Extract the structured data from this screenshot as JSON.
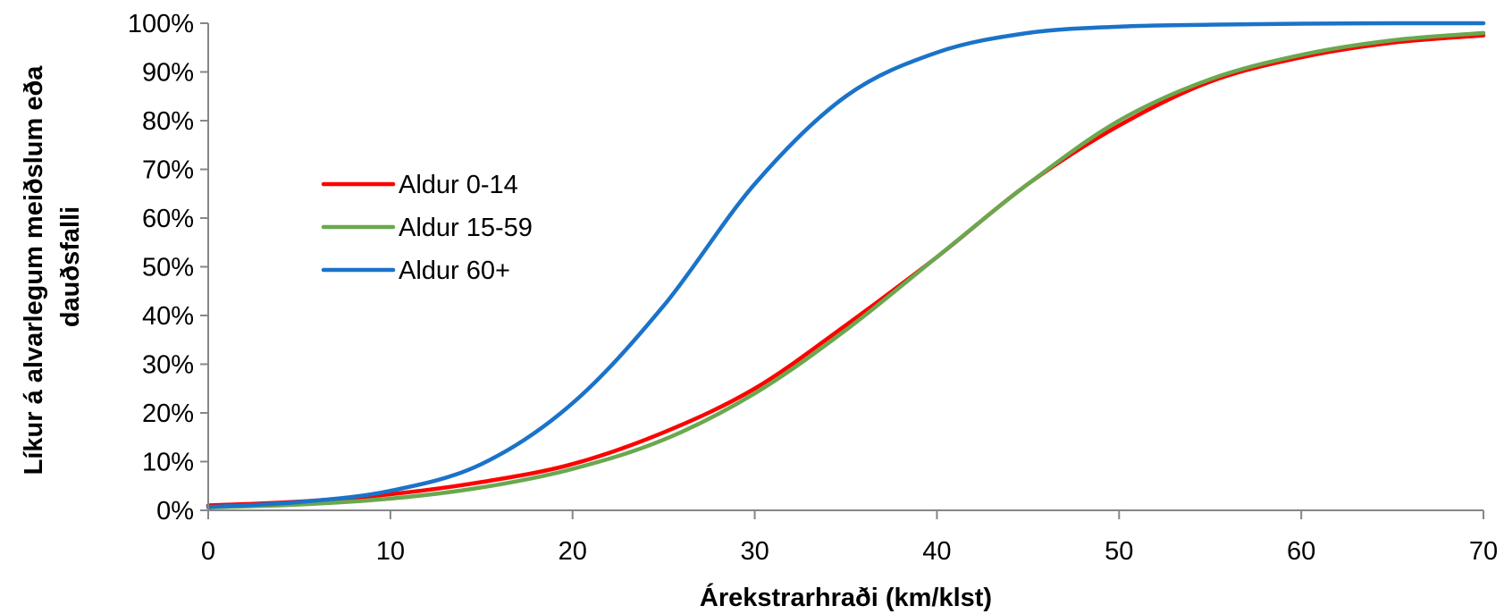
{
  "chart_data": {
    "type": "line",
    "title": "",
    "xlabel": "Árekstrarhraði (km/klst)",
    "ylabel_lines": [
      "Líkur á alvarlegum meiðslum eða",
      "dauðsfalli"
    ],
    "xlim": [
      0,
      70
    ],
    "ylim": [
      0,
      1
    ],
    "x_ticks": [
      0,
      10,
      20,
      30,
      40,
      50,
      60,
      70
    ],
    "x_tick_labels": [
      "0",
      "10",
      "20",
      "30",
      "40",
      "50",
      "60",
      "70"
    ],
    "y_ticks": [
      0,
      0.1,
      0.2,
      0.3,
      0.4,
      0.5,
      0.6,
      0.7,
      0.8,
      0.9,
      1.0
    ],
    "y_tick_labels": [
      "0%",
      "10%",
      "20%",
      "30%",
      "40%",
      "50%",
      "60%",
      "70%",
      "80%",
      "90%",
      "100%"
    ],
    "grid": false,
    "legend_position": "left-center",
    "x": [
      0,
      5,
      10,
      15,
      20,
      25,
      30,
      35,
      40,
      45,
      50,
      55,
      60,
      65,
      70
    ],
    "series": [
      {
        "name": "Aldur 0-14",
        "color": "#ff0000",
        "values": [
          0.01,
          0.018,
          0.033,
          0.058,
          0.095,
          0.16,
          0.25,
          0.38,
          0.52,
          0.67,
          0.79,
          0.88,
          0.93,
          0.96,
          0.975
        ]
      },
      {
        "name": "Aldur 15-59",
        "color": "#6aa84f",
        "values": [
          0.006,
          0.012,
          0.024,
          0.047,
          0.085,
          0.145,
          0.24,
          0.37,
          0.52,
          0.67,
          0.8,
          0.885,
          0.935,
          0.965,
          0.98
        ]
      },
      {
        "name": "Aldur 60+",
        "color": "#1a73c9",
        "values": [
          0.007,
          0.017,
          0.04,
          0.095,
          0.22,
          0.42,
          0.67,
          0.85,
          0.94,
          0.98,
          0.993,
          0.997,
          0.999,
          1.0,
          1.0
        ]
      }
    ]
  }
}
